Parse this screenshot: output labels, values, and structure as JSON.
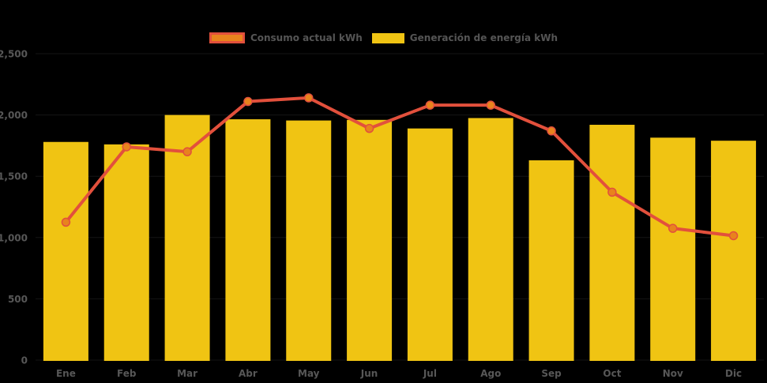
{
  "legend": {
    "position": "top",
    "items": [
      {
        "label": "Consumo actual kWh"
      },
      {
        "label": "Generación de energía kWh"
      }
    ]
  },
  "colors": {
    "background": "#000000",
    "bar": "#F0C413",
    "line": "#E2503C",
    "marker": "#E8831D",
    "text": "#555555"
  },
  "chart_data": {
    "type": "combo",
    "categories": [
      "Ene",
      "Feb",
      "Mar",
      "Abr",
      "May",
      "Jun",
      "Jul",
      "Ago",
      "Sep",
      "Oct",
      "Nov",
      "Dic"
    ],
    "series": [
      {
        "name": "Consumo actual kWh",
        "type": "line",
        "color": "#E2503C",
        "marker_color": "#E8831D",
        "values": [
          1125,
          1740,
          1700,
          2110,
          2140,
          1890,
          2080,
          2080,
          1870,
          1370,
          1075,
          1015
        ]
      },
      {
        "name": "Generación de energía kWh",
        "type": "bar",
        "color": "#F0C413",
        "values": [
          1780,
          1760,
          2000,
          1965,
          1955,
          1960,
          1890,
          1975,
          1630,
          1920,
          1815,
          1790
        ]
      }
    ],
    "title": "",
    "xlabel": "",
    "ylabel": "",
    "ylim": [
      0,
      2500
    ],
    "ytick_values": [
      2500,
      2000,
      1500,
      1000,
      500,
      0
    ],
    "ytick_labels": [
      "2,500",
      "2,000",
      "1,500",
      "1,000",
      "500",
      "0"
    ],
    "grid": false,
    "legend_position": "top"
  }
}
